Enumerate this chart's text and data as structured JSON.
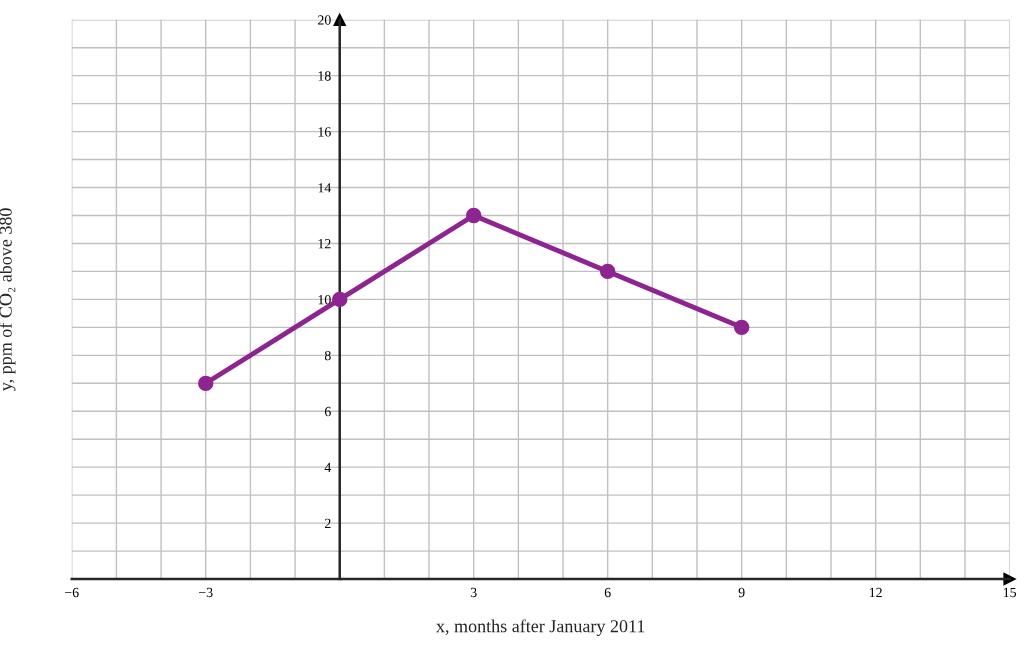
{
  "chart_data": {
    "type": "line",
    "xlabel": "x, months after January 2011",
    "ylabel": "y, ppm of CO₂ above 380",
    "x": [
      -3,
      0,
      3,
      6,
      9
    ],
    "series": [
      {
        "color": "#8e2490",
        "values": [
          7,
          10,
          13,
          11,
          9
        ]
      }
    ],
    "marker": "circle",
    "line_style": "solid",
    "grid": true,
    "legend": false,
    "xlim": [
      -6,
      15
    ],
    "ylim": [
      0,
      20
    ],
    "xticks": [
      {
        "value": -6,
        "label": "−6"
      },
      {
        "value": -5,
        "label": null
      },
      {
        "value": -4,
        "label": null
      },
      {
        "value": -3,
        "label": "−3"
      },
      {
        "value": -2,
        "label": null
      },
      {
        "value": -1,
        "label": null
      },
      {
        "value": 0,
        "label": null
      },
      {
        "value": 1,
        "label": null
      },
      {
        "value": 2,
        "label": null
      },
      3,
      {
        "value": 4,
        "label": null
      },
      {
        "value": 5,
        "label": null
      },
      6,
      {
        "value": 7,
        "label": null
      },
      {
        "value": 8,
        "label": null
      },
      9,
      {
        "value": 10,
        "label": null
      },
      {
        "value": 11,
        "label": null
      },
      12,
      {
        "value": 13,
        "label": null
      },
      {
        "value": 14,
        "label": null
      },
      15
    ],
    "yticks": [
      {
        "value": 0,
        "label": null
      },
      {
        "value": 1,
        "label": null
      },
      2,
      {
        "value": 3,
        "label": null
      },
      4,
      {
        "value": 5,
        "label": null
      },
      6,
      {
        "value": 7,
        "label": null
      },
      8,
      {
        "value": 9,
        "label": null
      },
      10,
      {
        "value": 11,
        "label": null
      },
      12,
      {
        "value": 13,
        "label": null
      },
      14,
      {
        "value": 15,
        "label": null
      },
      16,
      {
        "value": 17,
        "label": null
      },
      18,
      {
        "value": 19,
        "label": null
      },
      20
    ]
  }
}
